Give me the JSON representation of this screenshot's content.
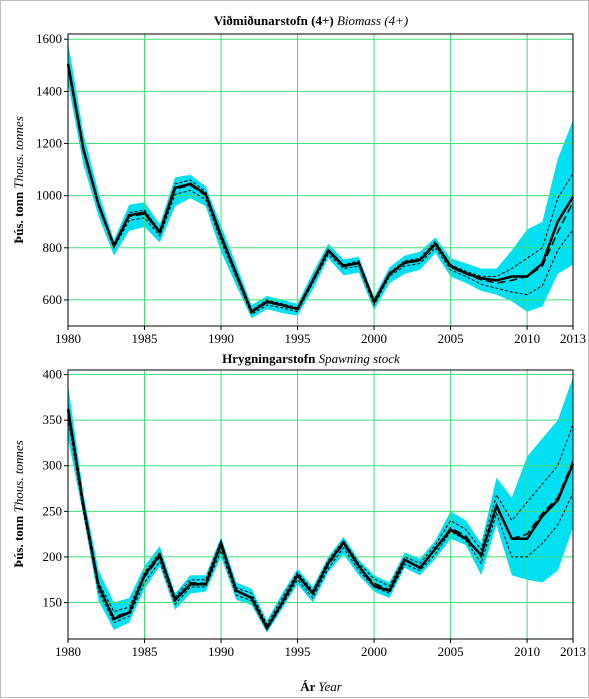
{
  "chart_data": [
    {
      "type": "line",
      "title": "Viðmiðunarstofn (4+)",
      "title_en": "Biomass (4+)",
      "ylabel": "Þús. tonn",
      "ylabel_en": "Thous. tonnes",
      "xlim": [
        1980,
        2013
      ],
      "ylim": [
        500,
        1620
      ],
      "xticks": [
        1980,
        1985,
        1990,
        1995,
        2000,
        2005,
        2010,
        2013
      ],
      "yticks": [
        600,
        800,
        1000,
        1200,
        1400,
        1600
      ],
      "grid": true,
      "colors": {
        "band": "#00e0f0",
        "grid": "#3ee07a",
        "line": "#000000"
      },
      "x": [
        1980,
        1981,
        1982,
        1983,
        1984,
        1985,
        1986,
        1987,
        1988,
        1989,
        1990,
        1991,
        1992,
        1993,
        1994,
        1995,
        1996,
        1997,
        1998,
        1999,
        2000,
        2001,
        2002,
        2003,
        2004,
        2005,
        2006,
        2007,
        2008,
        2009,
        2010,
        2011,
        2012,
        2013
      ],
      "series": [
        {
          "role": "band_upper",
          "values": [
            1590,
            1240,
            1010,
            830,
            965,
            975,
            890,
            1070,
            1080,
            1035,
            885,
            735,
            580,
            615,
            600,
            585,
            705,
            815,
            755,
            765,
            610,
            725,
            770,
            785,
            840,
            760,
            740,
            720,
            720,
            790,
            870,
            900,
            1140,
            1290
          ]
        },
        {
          "role": "band_lower",
          "values": [
            1430,
            1120,
            920,
            770,
            865,
            880,
            820,
            960,
            990,
            960,
            785,
            655,
            530,
            565,
            550,
            540,
            640,
            760,
            695,
            705,
            560,
            665,
            700,
            715,
            780,
            690,
            665,
            635,
            620,
            595,
            555,
            575,
            700,
            735
          ]
        },
        {
          "role": "upper_dashed",
          "values": [
            1510,
            1185,
            965,
            810,
            935,
            945,
            865,
            1045,
            1060,
            1015,
            855,
            705,
            560,
            600,
            585,
            570,
            680,
            795,
            735,
            750,
            600,
            705,
            750,
            760,
            825,
            735,
            710,
            690,
            690,
            720,
            760,
            800,
            990,
            1085
          ]
        },
        {
          "role": "lower_dashed",
          "values": [
            1490,
            1165,
            955,
            800,
            905,
            915,
            845,
            1005,
            1020,
            985,
            825,
            685,
            545,
            580,
            570,
            555,
            665,
            775,
            720,
            730,
            580,
            690,
            730,
            740,
            800,
            715,
            690,
            660,
            645,
            630,
            620,
            655,
            790,
            870
          ]
        },
        {
          "role": "median",
          "values": [
            1500,
            1175,
            960,
            805,
            920,
            930,
            855,
            1025,
            1040,
            1000,
            840,
            695,
            552,
            590,
            578,
            562,
            672,
            785,
            728,
            740,
            590,
            697,
            740,
            750,
            812,
            725,
            700,
            677,
            665,
            675,
            690,
            730,
            860,
            975
          ]
        },
        {
          "role": "estimate",
          "values": [
            1505,
            1180,
            965,
            808,
            925,
            935,
            860,
            1030,
            1045,
            1005,
            845,
            700,
            555,
            593,
            580,
            565,
            675,
            790,
            730,
            742,
            592,
            700,
            743,
            753,
            815,
            730,
            702,
            683,
            675,
            690,
            690,
            740,
            900,
            995
          ]
        }
      ]
    },
    {
      "type": "line",
      "title": "Hrygningarstofn",
      "title_en": "Spawning stock",
      "ylabel": "Þús. tonn",
      "ylabel_en": "Thous. tonnes",
      "xlabel": "Ár",
      "xlabel_en": "Year",
      "xlim": [
        1980,
        2013
      ],
      "ylim": [
        110,
        405
      ],
      "xticks": [
        1980,
        1985,
        1990,
        1995,
        2000,
        2005,
        2010,
        2013
      ],
      "yticks": [
        150,
        200,
        250,
        300,
        350,
        400
      ],
      "grid": true,
      "colors": {
        "band": "#00e0f0",
        "grid": "#3ee07a",
        "line": "#000000"
      },
      "x": [
        1980,
        1981,
        1982,
        1983,
        1984,
        1985,
        1986,
        1987,
        1988,
        1989,
        1990,
        1991,
        1992,
        1993,
        1994,
        1995,
        1996,
        1997,
        1998,
        1999,
        2000,
        2001,
        2002,
        2003,
        2004,
        2005,
        2006,
        2007,
        2008,
        2009,
        2010,
        2011,
        2012,
        2013
      ],
      "series": [
        {
          "role": "band_upper",
          "values": [
            390,
            270,
            185,
            150,
            155,
            190,
            212,
            160,
            180,
            180,
            222,
            172,
            165,
            130,
            160,
            187,
            167,
            200,
            222,
            197,
            180,
            172,
            205,
            198,
            218,
            250,
            240,
            215,
            287,
            265,
            310,
            330,
            350,
            397
          ]
        },
        {
          "role": "band_lower",
          "values": [
            330,
            245,
            152,
            120,
            128,
            165,
            190,
            142,
            160,
            162,
            200,
            153,
            147,
            117,
            143,
            170,
            150,
            183,
            203,
            180,
            162,
            155,
            188,
            180,
            198,
            220,
            213,
            180,
            235,
            180,
            175,
            172,
            185,
            232
          ]
        },
        {
          "role": "upper_dashed",
          "values": [
            368,
            262,
            172,
            140,
            145,
            183,
            205,
            156,
            175,
            175,
            218,
            166,
            160,
            126,
            155,
            183,
            163,
            196,
            218,
            193,
            176,
            168,
            200,
            193,
            213,
            240,
            230,
            208,
            268,
            240,
            260,
            280,
            300,
            345
          ]
        },
        {
          "role": "lower_dashed",
          "values": [
            352,
            250,
            162,
            128,
            135,
            172,
            195,
            148,
            167,
            167,
            207,
            158,
            152,
            120,
            147,
            175,
            155,
            187,
            210,
            185,
            167,
            160,
            192,
            185,
            203,
            228,
            218,
            193,
            248,
            200,
            200,
            215,
            235,
            270
          ]
        },
        {
          "role": "median",
          "values": [
            360,
            256,
            167,
            134,
            140,
            178,
            200,
            152,
            172,
            171,
            212,
            162,
            156,
            123,
            151,
            179,
            159,
            191,
            214,
            189,
            171,
            164,
            196,
            189,
            208,
            232,
            223,
            200,
            258,
            220,
            225,
            248,
            265,
            305
          ]
        },
        {
          "role": "estimate",
          "values": [
            362,
            257,
            168,
            132,
            139,
            180,
            202,
            153,
            170,
            170,
            215,
            163,
            155,
            122,
            150,
            180,
            160,
            193,
            216,
            190,
            168,
            163,
            197,
            188,
            209,
            230,
            220,
            202,
            256,
            220,
            220,
            245,
            262,
            302
          ]
        }
      ]
    }
  ]
}
